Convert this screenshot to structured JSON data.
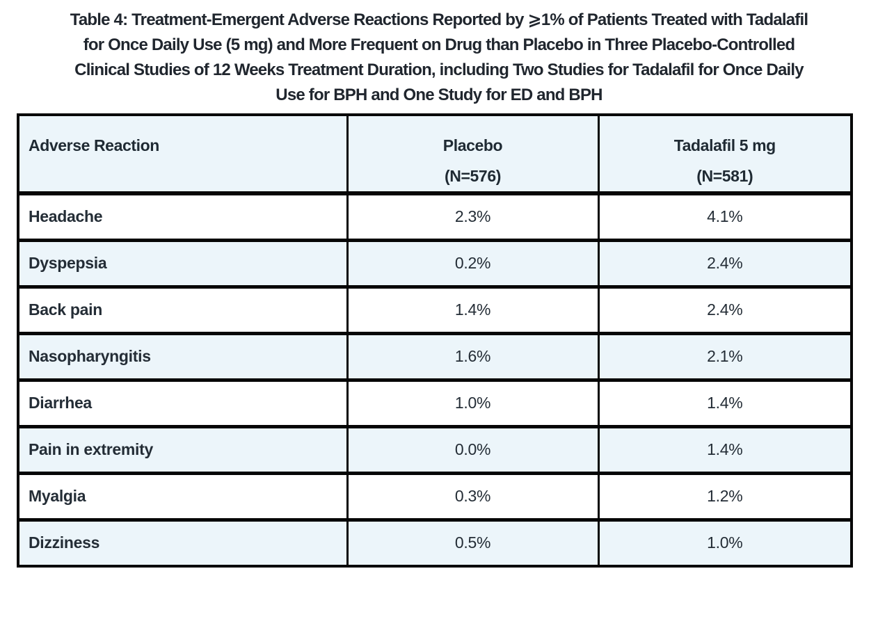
{
  "title": {
    "text": "Table 4: Treatment-Emergent Adverse Reactions Reported by ⩾1% of Patients Treated with Tadalafil for Once Daily Use (5 mg) and More Frequent on Drug than Placebo in Three Placebo-Controlled Clinical Studies of 12 Weeks Treatment Duration, including Two Studies for Tadalafil for Once Daily Use for BPH and One Study for ED and BPH",
    "lines": [
      "Table 4: Treatment-Emergent Adverse Reactions Reported by ⩾1% of Patients Treated with Tadalafil",
      "for Once Daily Use (5 mg) and More Frequent on Drug than Placebo in Three Placebo-Controlled",
      "Clinical Studies of 12 Weeks Treatment Duration, including Two Studies for Tadalafil for Once Daily",
      "Use for BPH and One Study for ED and BPH"
    ]
  },
  "table": {
    "header": {
      "reaction": "Adverse Reaction",
      "placebo_line1": "Placebo",
      "placebo_line2": "(N=576)",
      "tadalafil_line1": "Tadalafil 5 mg",
      "tadalafil_line2": "(N=581)"
    },
    "rows": [
      {
        "reaction": "Headache",
        "placebo": "2.3%",
        "tadalafil": "4.1%"
      },
      {
        "reaction": "Dyspepsia",
        "placebo": "0.2%",
        "tadalafil": "2.4%"
      },
      {
        "reaction": "Back pain",
        "placebo": "1.4%",
        "tadalafil": "2.4%"
      },
      {
        "reaction": "Nasopharyngitis",
        "placebo": "1.6%",
        "tadalafil": "2.1%"
      },
      {
        "reaction": "Diarrhea",
        "placebo": "1.0%",
        "tadalafil": "1.4%"
      },
      {
        "reaction": "Pain in extremity",
        "placebo": "0.0%",
        "tadalafil": "1.4%"
      },
      {
        "reaction": "Myalgia",
        "placebo": "0.3%",
        "tadalafil": "1.2%"
      },
      {
        "reaction": "Dizziness",
        "placebo": "0.5%",
        "tadalafil": "1.0%"
      }
    ]
  },
  "chart_data": {
    "type": "table",
    "title": "Table 4: Treatment-Emergent Adverse Reactions Reported by ⩾1% of Patients Treated with Tadalafil for Once Daily Use (5 mg) and More Frequent on Drug than Placebo in Three Placebo-Controlled Clinical Studies of 12 Weeks Treatment Duration, including Two Studies for Tadalafil for Once Daily Use for BPH and One Study for ED and BPH",
    "columns": [
      "Adverse Reaction",
      "Placebo (N=576)",
      "Tadalafil 5 mg (N=581)"
    ],
    "rows": [
      [
        "Headache",
        "2.3%",
        "4.1%"
      ],
      [
        "Dyspepsia",
        "0.2%",
        "2.4%"
      ],
      [
        "Back pain",
        "1.4%",
        "2.4%"
      ],
      [
        "Nasopharyngitis",
        "1.6%",
        "2.1%"
      ],
      [
        "Diarrhea",
        "1.0%",
        "1.4%"
      ],
      [
        "Pain in extremity",
        "0.0%",
        "1.4%"
      ],
      [
        "Myalgia",
        "0.3%",
        "1.2%"
      ],
      [
        "Dizziness",
        "0.5%",
        "1.0%"
      ]
    ]
  },
  "colors": {
    "header_bg": "#ecf5fa",
    "alt_row_bg": "#ecf5fa",
    "row_bg": "#ffffff",
    "border": "#060606",
    "title_text": "#20262e",
    "cell_text": "#242d36"
  }
}
